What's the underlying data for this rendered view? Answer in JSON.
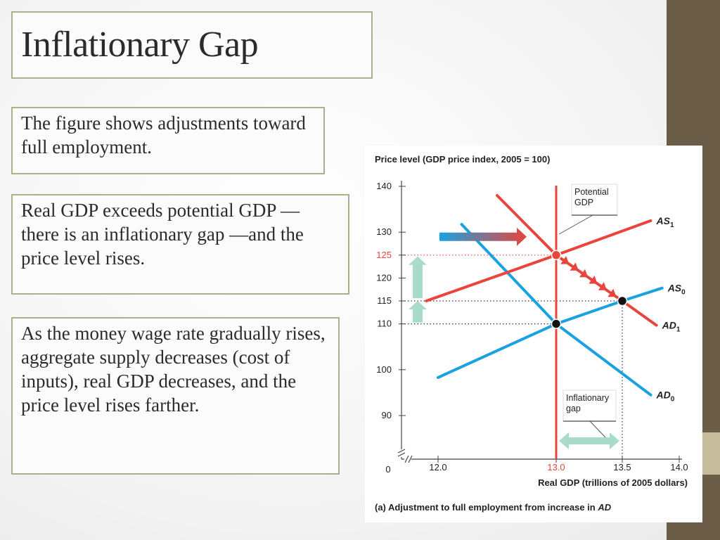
{
  "slide": {
    "title": "Inflationary Gap",
    "box1": "The figure shows adjustments toward full employment.",
    "box2": "Real GDP exceeds potential GDP — there is an inflationary gap —and the price level rises.",
    "box3": "As the money wage rate gradually rises, aggregate supply decreases (cost of inputs), real GDP decreases, and the price level rises farther.",
    "colors": {
      "accent_band": "#6b5d47",
      "box_border": "#aab08c"
    }
  },
  "chart_data": {
    "type": "line",
    "ylabel": "Price level (GDP price index, 2005 = 100)",
    "xlabel": "Real GDP (trillions of 2005 dollars)",
    "caption_prefix": "(a) Adjustment to full employment from increase in ",
    "caption_ad": "AD",
    "zero_label": "0",
    "xlim": [
      11.8,
      14.0
    ],
    "ylim": [
      84,
      140
    ],
    "x_ticks": [
      {
        "value": 12.0,
        "label": "12.0",
        "highlight": false
      },
      {
        "value": 13.0,
        "label": "13.0",
        "highlight": true
      },
      {
        "value": 13.5,
        "label": "13.5",
        "highlight": false
      },
      {
        "value": 14.0,
        "label": "14.0",
        "highlight": false
      }
    ],
    "y_ticks": [
      {
        "value": 90,
        "label": "90",
        "highlight": false
      },
      {
        "value": 100,
        "label": "100",
        "highlight": false
      },
      {
        "value": 110,
        "label": "110",
        "highlight": false
      },
      {
        "value": 115,
        "label": "115",
        "highlight": false
      },
      {
        "value": 120,
        "label": "120",
        "highlight": false
      },
      {
        "value": 125,
        "label": "125",
        "highlight": true
      },
      {
        "value": 130,
        "label": "130",
        "highlight": false
      },
      {
        "value": 140,
        "label": "140",
        "highlight": false
      }
    ],
    "potential_gdp": {
      "x": 13.0,
      "label": "Potential GDP",
      "label_lines": [
        "Potential",
        "GDP"
      ],
      "color": "#e8453c"
    },
    "series": [
      {
        "key": "AD0",
        "name": "AD",
        "sub": "0",
        "color": "#1aa1e0",
        "points": [
          [
            12.2,
            131.7
          ],
          [
            13.0,
            110.0
          ],
          [
            13.75,
            94.5
          ]
        ]
      },
      {
        "key": "AS0",
        "name": "AS",
        "sub": "0",
        "color": "#1aa1e0",
        "points": [
          [
            12.0,
            98.3
          ],
          [
            13.0,
            110.0
          ],
          [
            13.5,
            115.0
          ],
          [
            13.85,
            117.8
          ]
        ]
      },
      {
        "key": "AD1",
        "name": "AD",
        "sub": "1",
        "color": "#e8453c",
        "points": [
          [
            12.5,
            138.0
          ],
          [
            13.0,
            125.0
          ],
          [
            13.5,
            115.0
          ],
          [
            13.8,
            109.7
          ]
        ]
      },
      {
        "key": "AS1",
        "name": "AS",
        "sub": "1",
        "color": "#e8453c",
        "points": [
          [
            11.9,
            115.0
          ],
          [
            13.0,
            125.0
          ],
          [
            13.75,
            132.5
          ]
        ]
      }
    ],
    "equilibria": [
      {
        "x": 13.0,
        "y": 110,
        "color": "#111111"
      },
      {
        "x": 13.0,
        "y": 125,
        "color": "#e8453c"
      },
      {
        "x": 13.5,
        "y": 115,
        "color": "#111111"
      }
    ],
    "inflationary_gap": {
      "from": 13.0,
      "to": 13.5,
      "label_lines": [
        "Inflationary",
        "gap"
      ],
      "color": "#a8dcc9"
    }
  }
}
